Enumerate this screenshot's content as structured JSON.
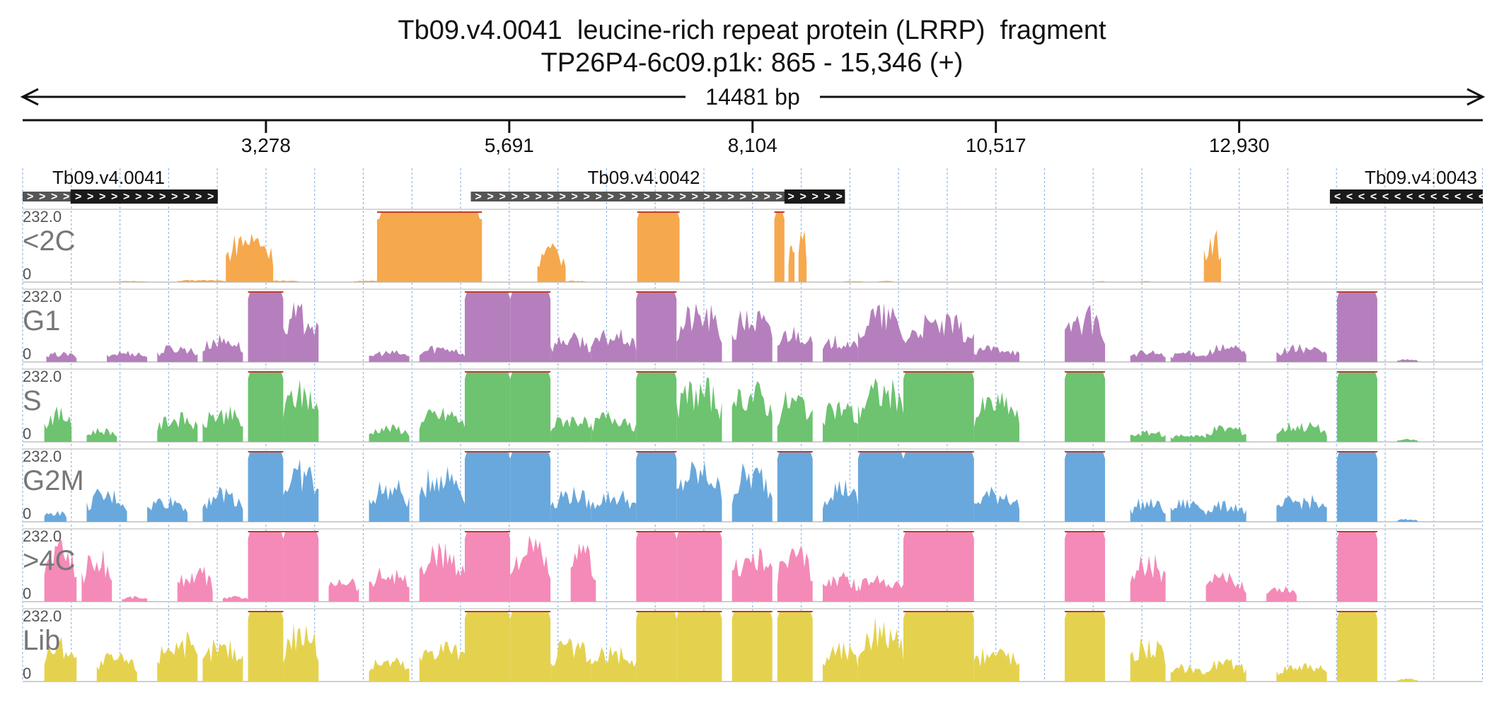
{
  "title": {
    "line1": "Tb09.v4.0041  leucine-rich repeat protein (LRRP)  fragment",
    "line2": "TP26P4-6c09.p1k: 865 - 15,346 (+)"
  },
  "span_label": "14481 bp",
  "chart_data": {
    "type": "area",
    "title": "Tb09.v4.0041  leucine-rich repeat protein (LRRP)  fragment",
    "subtitle": "TP26P4-6c09.p1k: 865 - 15,346 (+)",
    "x_range": [
      865,
      15346
    ],
    "x_ticks": [
      3278,
      5691,
      8104,
      10517,
      12930
    ],
    "x_tick_labels": [
      "3,278",
      "5,691",
      "8,104",
      "10,517",
      "12,930"
    ],
    "y_range": [
      0,
      232.0
    ],
    "y_max_label": "232.0",
    "y_min_label": "0",
    "genes": [
      {
        "name": "Tb09.v4.0041",
        "strand": "+",
        "start": 865,
        "end": 2800,
        "cds_start": 1340,
        "cds_end": 2800
      },
      {
        "name": "Tb09.v4.0042",
        "strand": "+",
        "start": 5310,
        "end": 9020,
        "cds_start": 8420,
        "cds_end": 9020
      },
      {
        "name": "Tb09.v4.0043",
        "strand": "-",
        "start": 13830,
        "end": 15346,
        "cds_start": 13830,
        "cds_end": 15346
      }
    ],
    "series": [
      {
        "name": "<2C",
        "color": "#f6a84c",
        "peaks": [
          [
            2880,
            3350,
            180
          ],
          [
            4380,
            5420,
            232
          ],
          [
            5970,
            6250,
            130
          ],
          [
            6960,
            7380,
            232
          ],
          [
            8320,
            8420,
            232
          ],
          [
            8460,
            8520,
            200
          ],
          [
            8560,
            8640,
            200
          ],
          [
            12580,
            12750,
            180
          ]
        ],
        "baseline": [
          [
            1800,
            2100,
            4
          ],
          [
            2400,
            2900,
            8
          ],
          [
            3300,
            3600,
            6
          ],
          [
            4150,
            4380,
            6
          ],
          [
            6250,
            6450,
            5
          ],
          [
            9000,
            9200,
            4
          ],
          [
            9350,
            9500,
            4
          ],
          [
            11500,
            11600,
            4
          ],
          [
            11950,
            12050,
            4
          ]
        ]
      },
      {
        "name": "G1",
        "color": "#b57fbd",
        "peaks": [
          [
            1100,
            1400,
            35
          ],
          [
            1700,
            2100,
            40
          ],
          [
            2200,
            2600,
            60
          ],
          [
            2650,
            3050,
            95
          ],
          [
            3100,
            3450,
            232
          ],
          [
            3450,
            3800,
            200
          ],
          [
            4300,
            4700,
            40
          ],
          [
            4800,
            5250,
            60
          ],
          [
            5250,
            5700,
            232
          ],
          [
            5700,
            6100,
            232
          ],
          [
            6100,
            6500,
            100
          ],
          [
            6500,
            6950,
            110
          ],
          [
            6950,
            7350,
            232
          ],
          [
            7350,
            7800,
            200
          ],
          [
            7900,
            8300,
            185
          ],
          [
            8350,
            8700,
            130
          ],
          [
            8800,
            9150,
            90
          ],
          [
            9150,
            9600,
            200
          ],
          [
            9600,
            10300,
            160
          ],
          [
            10300,
            10750,
            60
          ],
          [
            11200,
            11600,
            190
          ],
          [
            11850,
            12200,
            40
          ],
          [
            12250,
            12600,
            40
          ],
          [
            12600,
            13000,
            60
          ],
          [
            13300,
            13800,
            60
          ],
          [
            13900,
            14300,
            232
          ],
          [
            14500,
            14700,
            10
          ]
        ]
      },
      {
        "name": "S",
        "color": "#6dc36f",
        "peaks": [
          [
            1080,
            1350,
            120
          ],
          [
            1500,
            1800,
            50
          ],
          [
            2200,
            2600,
            100
          ],
          [
            2650,
            3050,
            120
          ],
          [
            3100,
            3450,
            232
          ],
          [
            3450,
            3800,
            210
          ],
          [
            4300,
            4700,
            60
          ],
          [
            4800,
            5250,
            120
          ],
          [
            5250,
            5700,
            232
          ],
          [
            5700,
            6100,
            232
          ],
          [
            6100,
            6500,
            100
          ],
          [
            6500,
            6950,
            110
          ],
          [
            6950,
            7350,
            232
          ],
          [
            7350,
            7800,
            220
          ],
          [
            7900,
            8300,
            210
          ],
          [
            8350,
            8700,
            180
          ],
          [
            8800,
            9150,
            150
          ],
          [
            9150,
            9600,
            220
          ],
          [
            9600,
            10300,
            232
          ],
          [
            10300,
            10750,
            170
          ],
          [
            11200,
            11600,
            232
          ],
          [
            11850,
            12200,
            40
          ],
          [
            12250,
            12600,
            30
          ],
          [
            12600,
            13000,
            60
          ],
          [
            13300,
            13800,
            70
          ],
          [
            13900,
            14300,
            232
          ],
          [
            14500,
            14700,
            10
          ]
        ]
      },
      {
        "name": "G2M",
        "color": "#69a8dc",
        "peaks": [
          [
            1080,
            1300,
            40
          ],
          [
            1500,
            1900,
            110
          ],
          [
            2100,
            2500,
            90
          ],
          [
            2650,
            3050,
            120
          ],
          [
            3100,
            3450,
            232
          ],
          [
            3450,
            3800,
            210
          ],
          [
            4300,
            4700,
            140
          ],
          [
            4800,
            5250,
            200
          ],
          [
            5250,
            5700,
            232
          ],
          [
            5700,
            6100,
            232
          ],
          [
            6100,
            6500,
            120
          ],
          [
            6500,
            6950,
            110
          ],
          [
            6950,
            7350,
            232
          ],
          [
            7350,
            7800,
            210
          ],
          [
            7900,
            8300,
            200
          ],
          [
            8350,
            8700,
            232
          ],
          [
            8800,
            9150,
            150
          ],
          [
            9150,
            9600,
            232
          ],
          [
            9600,
            10300,
            232
          ],
          [
            10300,
            10750,
            120
          ],
          [
            11200,
            11600,
            232
          ],
          [
            11850,
            12200,
            80
          ],
          [
            12250,
            12600,
            80
          ],
          [
            12600,
            13000,
            70
          ],
          [
            13300,
            13800,
            90
          ],
          [
            13900,
            14300,
            232
          ],
          [
            14500,
            14700,
            10
          ]
        ]
      },
      {
        "name": ">4C",
        "color": "#f48ab8",
        "peaks": [
          [
            1080,
            1400,
            220
          ],
          [
            1450,
            1750,
            180
          ],
          [
            1850,
            2100,
            20
          ],
          [
            2400,
            2750,
            120
          ],
          [
            2850,
            3100,
            20
          ],
          [
            3100,
            3450,
            232
          ],
          [
            3450,
            3800,
            232
          ],
          [
            3900,
            4200,
            100
          ],
          [
            4300,
            4700,
            120
          ],
          [
            4800,
            5250,
            200
          ],
          [
            5250,
            5700,
            232
          ],
          [
            5700,
            6100,
            220
          ],
          [
            6300,
            6550,
            200
          ],
          [
            6950,
            7350,
            232
          ],
          [
            7350,
            7800,
            232
          ],
          [
            7900,
            8300,
            190
          ],
          [
            8350,
            8700,
            200
          ],
          [
            8800,
            9150,
            100
          ],
          [
            9150,
            9600,
            100
          ],
          [
            9600,
            10300,
            232
          ],
          [
            11200,
            11600,
            232
          ],
          [
            11850,
            12200,
            170
          ],
          [
            12600,
            13000,
            100
          ],
          [
            13200,
            13500,
            60
          ],
          [
            13900,
            14300,
            232
          ]
        ]
      },
      {
        "name": "Lib",
        "color": "#e4d24f",
        "peaks": [
          [
            1080,
            1400,
            160
          ],
          [
            1600,
            2000,
            100
          ],
          [
            2200,
            2600,
            170
          ],
          [
            2650,
            3050,
            150
          ],
          [
            3100,
            3450,
            232
          ],
          [
            3450,
            3800,
            220
          ],
          [
            4300,
            4700,
            90
          ],
          [
            4800,
            5250,
            160
          ],
          [
            5250,
            5700,
            232
          ],
          [
            5700,
            6100,
            232
          ],
          [
            6100,
            6500,
            150
          ],
          [
            6500,
            6950,
            120
          ],
          [
            6950,
            7350,
            232
          ],
          [
            7350,
            7800,
            232
          ],
          [
            7900,
            8300,
            232
          ],
          [
            8350,
            8700,
            232
          ],
          [
            8800,
            9150,
            140
          ],
          [
            9150,
            9600,
            220
          ],
          [
            9600,
            10300,
            232
          ],
          [
            10300,
            10750,
            130
          ],
          [
            11200,
            11600,
            232
          ],
          [
            11850,
            12200,
            160
          ],
          [
            12250,
            12600,
            60
          ],
          [
            12600,
            13000,
            80
          ],
          [
            13300,
            13800,
            70
          ],
          [
            13900,
            14300,
            232
          ],
          [
            14500,
            14700,
            10
          ]
        ]
      }
    ],
    "grid": true
  }
}
